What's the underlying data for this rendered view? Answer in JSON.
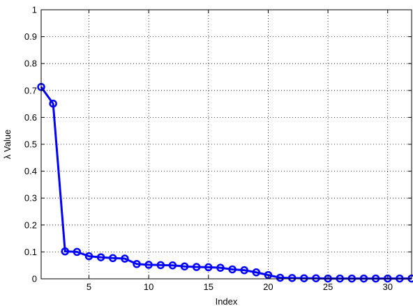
{
  "chart_data": {
    "type": "line",
    "xlabel": "Index",
    "ylabel": "λ Value",
    "xlim": [
      1,
      32
    ],
    "ylim": [
      0,
      1
    ],
    "grid": true,
    "xticks": [
      5,
      10,
      15,
      20,
      25,
      30
    ],
    "yticks": [
      0,
      0.1,
      0.2,
      0.3,
      0.4,
      0.5,
      0.6,
      0.7,
      0.8,
      0.9,
      1
    ],
    "ytick_labels": [
      "0",
      "0.1",
      "0.2",
      "0.3",
      "0.4",
      "0.5",
      "0.6",
      "0.7",
      "0.8",
      "0.9",
      "1"
    ],
    "line_color": "#0000ff",
    "marker": "circle",
    "series": [
      {
        "x": [
          1,
          2,
          3,
          4,
          5,
          6,
          7,
          8,
          9,
          10,
          11,
          12,
          13,
          14,
          15,
          16,
          17,
          18,
          19,
          20,
          21,
          22,
          23,
          24,
          25,
          26,
          27,
          28,
          29,
          30,
          31,
          32
        ],
        "values": [
          0.713,
          0.651,
          0.102,
          0.1,
          0.084,
          0.08,
          0.077,
          0.075,
          0.055,
          0.052,
          0.051,
          0.05,
          0.046,
          0.044,
          0.043,
          0.041,
          0.035,
          0.032,
          0.024,
          0.014,
          0.004,
          0.003,
          0.002,
          0.002,
          0.001,
          0.001,
          0.001,
          0.001,
          0.001,
          0.001,
          0.001,
          0.001
        ]
      }
    ]
  }
}
